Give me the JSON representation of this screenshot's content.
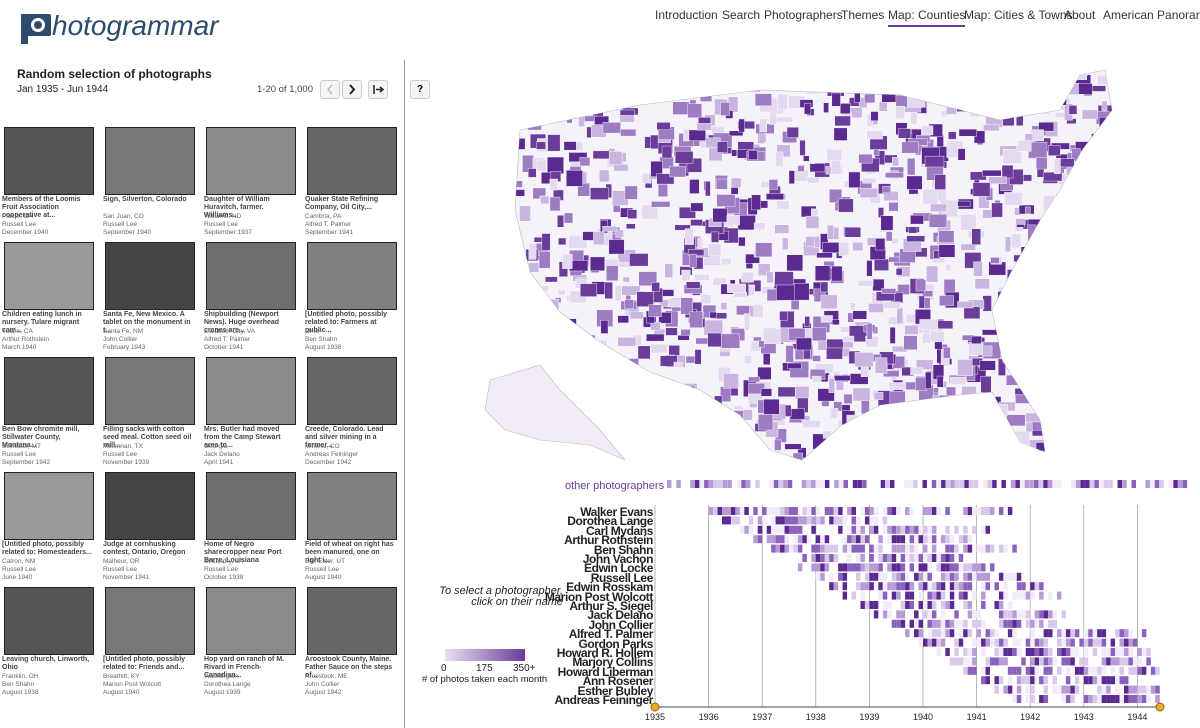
{
  "header": {
    "logo": "hotogrammar",
    "nav": [
      "Introduction",
      "Search",
      "Photographers",
      "Themes",
      "Map: Counties",
      "Map: Cities & Towns",
      "About",
      "American Panorama"
    ]
  },
  "panel": {
    "title": "Random selection of photographs",
    "date_range": "Jan 1935 - Jun 1944",
    "pagination": "1-20 of 1,000",
    "help": "?"
  },
  "photos": [
    {
      "caption": "Members of the Loomis Fruit Association cooperative at...",
      "location": "Placer, CA",
      "photographer": "Russell Lee",
      "date": "December 1940"
    },
    {
      "caption": "Sign, Silverton, Colorado",
      "location": "San Juan, CO",
      "photographer": "Russell Lee",
      "date": "September 1940"
    },
    {
      "caption": "Daughter of William Huravitch, farmer. Williams...",
      "location": "Williams, ND",
      "photographer": "Russell Lee",
      "date": "September 1937"
    },
    {
      "caption": "Quaker State Refining Company, Oil City,...",
      "location": "Cambria, PA",
      "photographer": "Alfred T. Palmer",
      "date": "September 1941"
    },
    {
      "caption": "Children eating lunch in nursery. Tulare migrant cam...",
      "location": "Tulare, CA",
      "photographer": "Arthur Rothstein",
      "date": "March 1940"
    },
    {
      "caption": "Santa Fe, New Mexico. A tablet on the monument in t...",
      "location": "Santa Fe, NM",
      "photographer": "John Collier",
      "date": "February 1943"
    },
    {
      "caption": "Shipbuilding (Newport News). Huge overhead cranes are...",
      "location": "Elizabeth City, VA",
      "photographer": "Alfred T. Palmer",
      "date": "October 1941"
    },
    {
      "caption": "[Untitled photo, possibly related to: Farmers at public...",
      "location": "Ohio",
      "photographer": "Ben Shahn",
      "date": "August 1938"
    },
    {
      "caption": "Ben Bow chromite mill, Stillwater County, Montana...",
      "location": "Stillwater, MT",
      "photographer": "Russell Lee",
      "date": "September 1942"
    },
    {
      "caption": "Filling sacks with cotton seed meal. Cotton seed oil mill...",
      "location": "Mclennan, TX",
      "photographer": "Russell Lee",
      "date": "November 1939"
    },
    {
      "caption": "Mrs. Butler had moved from the Camp Stewart area to...",
      "location": "Georgia",
      "photographer": "Jack Delano",
      "date": "April 1941"
    },
    {
      "caption": "Creede, Colorado. Lead and silver mining in a former...",
      "location": "Mineral, CO",
      "photographer": "Andreas Feininger",
      "date": "December 1942"
    },
    {
      "caption": "[Untitled photo, possibly related to: Homesteaders...",
      "location": "Catron, NM",
      "photographer": "Russell Lee",
      "date": "June 1940"
    },
    {
      "caption": "Judge at cornhusking contest, Ontario, Oregon",
      "location": "Malheur, OR",
      "photographer": "Russell Lee",
      "date": "November 1941"
    },
    {
      "caption": "Home of Negro sharecropper near Port Barre, Louisiana",
      "location": "St Landry, LA",
      "photographer": "Russell Lee",
      "date": "October 1938"
    },
    {
      "caption": "Field of wheat on right has been manured, one on right i...",
      "location": "Box Elder, UT",
      "photographer": "Russell Lee",
      "date": "August 1940"
    },
    {
      "caption": "Leaving church, Linworth, Ohio",
      "location": "Franklin, OH",
      "photographer": "Ben Shahn",
      "date": "August 1938"
    },
    {
      "caption": "[Untitled photo, possibly related to: Friends and...",
      "location": "Breathitt, KY",
      "photographer": "Marion Post Wolcott",
      "date": "August 1940"
    },
    {
      "caption": "Hop yard on ranch of M. Rivard in French-Canadian...",
      "location": "Washington",
      "photographer": "Dorothea Lange",
      "date": "August 1939"
    },
    {
      "caption": "Aroostook County, Maine. Father Sauce on the steps of...",
      "location": "Aroostook, ME",
      "photographer": "John Collier",
      "date": "August 1942"
    }
  ],
  "timeline": {
    "instruction": "To select a photographer, click on their name",
    "other": "other photographers",
    "photographers": [
      "Walker Evans",
      "Dorothea Lange",
      "Carl Mydans",
      "Arthur Rothstein",
      "Ben Shahn",
      "John Vachon",
      "Edwin Locke",
      "Russell Lee",
      "Edwin Rosskam",
      "Marion Post Wolcott",
      "Arthur S. Siegel",
      "Jack Delano",
      "John Collier",
      "Alfred T. Palmer",
      "Gordon Parks",
      "Howard R. Hollem",
      "Marjory Collins",
      "Howard Liberman",
      "Ann Rosener",
      "Esther Bubley",
      "Andreas Feininger"
    ],
    "years": [
      "1935",
      "1936",
      "1937",
      "1938",
      "1939",
      "1940",
      "1941",
      "1942",
      "1943",
      "1944"
    ]
  },
  "legend": {
    "labels": [
      "0",
      "175",
      "350+"
    ],
    "caption": "# of photos taken each month"
  }
}
